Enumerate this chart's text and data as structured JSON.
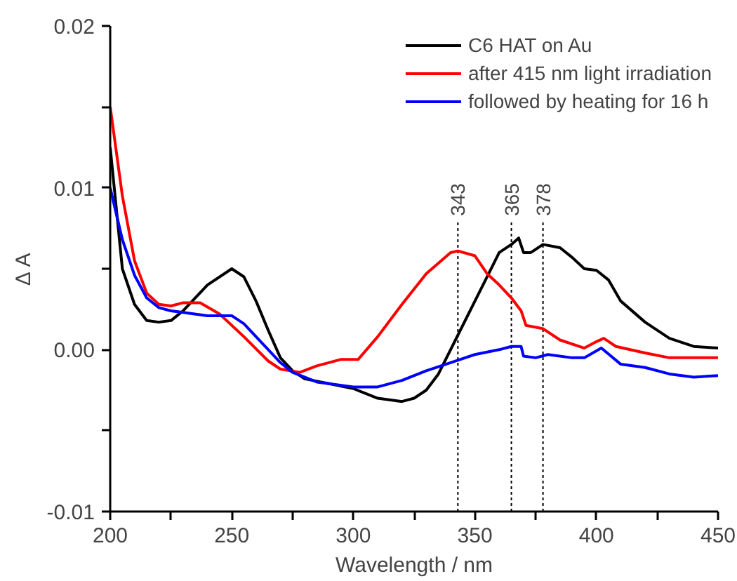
{
  "chart_data": {
    "type": "line",
    "xlabel": "Wavelength / nm",
    "ylabel": "Δ A",
    "xlim": [
      200,
      450
    ],
    "xticks": [
      200,
      {
        "value": 225,
        "label": null
      },
      250,
      {
        "value": 275,
        "label": null
      },
      300,
      {
        "value": 325,
        "label": null
      },
      350,
      {
        "value": 375,
        "label": null
      },
      400,
      {
        "value": 425,
        "label": null
      },
      450
    ],
    "ylim": [
      -0.01,
      0.02
    ],
    "yticks": [
      {
        "value": -0.01,
        "label": "-0.01"
      },
      {
        "value": -0.005,
        "label": null
      },
      {
        "value": 0,
        "label": "0.00"
      },
      {
        "value": 0.005,
        "label": null
      },
      {
        "value": 0.01,
        "label": "0.01"
      },
      {
        "value": 0.015,
        "label": null
      },
      {
        "value": 0.02,
        "label": "0.02"
      }
    ],
    "grid": false,
    "legend": "top right",
    "line_style": "solid",
    "marker": "none",
    "ref_lines": [
      {
        "axis": "x",
        "value": 343,
        "label": "343",
        "line_style": "dotted",
        "color": "#000000"
      },
      {
        "axis": "x",
        "value": 365,
        "label": "365",
        "line_style": "dotted",
        "color": "#000000"
      },
      {
        "axis": "x",
        "value": 378,
        "label": "378",
        "line_style": "dotted",
        "color": "#000000"
      }
    ],
    "series": [
      {
        "name": "C6 HAT on Au",
        "color": "#000000",
        "x": [
          200,
          205,
          210,
          215,
          220,
          225,
          230,
          240,
          250,
          255,
          260,
          265,
          270,
          275,
          280,
          290,
          300,
          310,
          320,
          325,
          330,
          335,
          340,
          345,
          350,
          355,
          360,
          365,
          368,
          370,
          373,
          378,
          385,
          390,
          395,
          400,
          405,
          410,
          420,
          430,
          440,
          450
        ],
        "values": [
          0.0125,
          0.005,
          0.0028,
          0.0018,
          0.0017,
          0.0018,
          0.0024,
          0.004,
          0.005,
          0.0045,
          0.003,
          0.0012,
          -0.0005,
          -0.0013,
          -0.0018,
          -0.0021,
          -0.0024,
          -0.003,
          -0.0032,
          -0.003,
          -0.0025,
          -0.0015,
          0.0,
          0.0015,
          0.003,
          0.0045,
          0.006,
          0.0065,
          0.0069,
          0.006,
          0.006,
          0.0065,
          0.0063,
          0.0057,
          0.005,
          0.0049,
          0.0043,
          0.003,
          0.0017,
          0.0007,
          0.0002,
          0.0001
        ]
      },
      {
        "name": "after 415 nm light irradiation",
        "color": "#ff0000",
        "x": [
          200,
          205,
          210,
          215,
          220,
          225,
          230,
          237,
          245,
          255,
          265,
          270,
          278,
          285,
          295,
          302,
          310,
          320,
          330,
          340,
          343,
          350,
          355,
          360,
          365,
          369,
          371,
          378,
          385,
          395,
          400,
          403,
          408,
          420,
          430,
          440,
          450
        ],
        "values": [
          0.015,
          0.0095,
          0.0055,
          0.0035,
          0.0028,
          0.0027,
          0.0029,
          0.0029,
          0.0022,
          0.0008,
          -0.0007,
          -0.0012,
          -0.0014,
          -0.001,
          -0.0006,
          -0.0006,
          0.0008,
          0.0028,
          0.0047,
          0.006,
          0.0061,
          0.0058,
          0.0047,
          0.004,
          0.0032,
          0.0024,
          0.0015,
          0.0013,
          0.0006,
          0.0001,
          0.0005,
          0.0007,
          0.0002,
          -0.0002,
          -0.0005,
          -0.0005,
          -0.0005
        ]
      },
      {
        "name": "followed by heating for 16 h",
        "color": "#0000ff",
        "x": [
          200,
          205,
          210,
          215,
          220,
          225,
          230,
          240,
          250,
          255,
          260,
          270,
          275,
          285,
          300,
          310,
          320,
          330,
          340,
          350,
          360,
          365,
          369,
          370,
          375,
          380,
          390,
          395,
          402,
          410,
          420,
          430,
          440,
          450
        ],
        "values": [
          0.01,
          0.0068,
          0.0046,
          0.0032,
          0.0026,
          0.0024,
          0.0023,
          0.0021,
          0.0021,
          0.0016,
          0.0008,
          -0.0008,
          -0.0014,
          -0.002,
          -0.0023,
          -0.0023,
          -0.0019,
          -0.0013,
          -0.0008,
          -0.0003,
          0.0,
          0.0002,
          0.0002,
          -0.0004,
          -0.0005,
          -0.0003,
          -0.0005,
          -0.0005,
          0.0001,
          -0.0009,
          -0.0011,
          -0.0015,
          -0.0017,
          -0.0016
        ]
      }
    ]
  }
}
